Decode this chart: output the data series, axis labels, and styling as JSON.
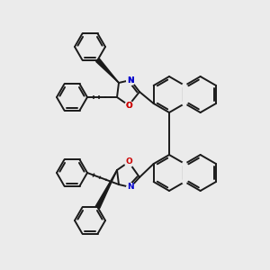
{
  "bg_color": "#ebebeb",
  "bond_color": "#1a1a1a",
  "N_color": "#0000cc",
  "O_color": "#cc0000",
  "lw": 1.4,
  "figsize": [
    3.0,
    3.0
  ],
  "dpi": 100,
  "xlim": [
    0,
    300
  ],
  "ylim": [
    0,
    300
  ]
}
